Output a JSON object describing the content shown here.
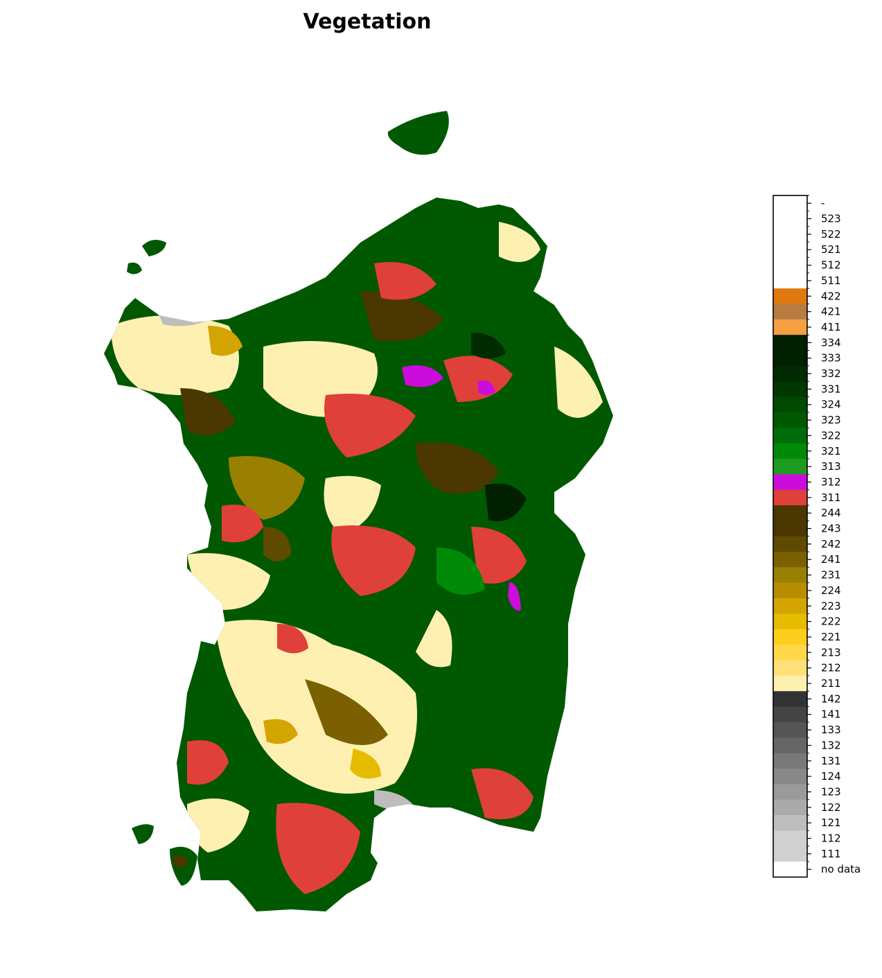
{
  "title": "Vegetation",
  "legend": {
    "classes": [
      {
        "label": "-",
        "color": "#ffffff"
      },
      {
        "label": "523",
        "color": "#ffffff"
      },
      {
        "label": "522",
        "color": "#ffffff"
      },
      {
        "label": "521",
        "color": "#ffffff"
      },
      {
        "label": "512",
        "color": "#ffffff"
      },
      {
        "label": "511",
        "color": "#ffffff"
      },
      {
        "label": "422",
        "color": "#e07a10"
      },
      {
        "label": "421",
        "color": "#b87c42"
      },
      {
        "label": "411",
        "color": "#f5a042"
      },
      {
        "label": "334",
        "color": "#002000"
      },
      {
        "label": "333",
        "color": "#002000"
      },
      {
        "label": "332",
        "color": "#002a00"
      },
      {
        "label": "331",
        "color": "#003800"
      },
      {
        "label": "324",
        "color": "#004a00"
      },
      {
        "label": "323",
        "color": "#005800"
      },
      {
        "label": "322",
        "color": "#006e08"
      },
      {
        "label": "321",
        "color": "#008a08"
      },
      {
        "label": "313",
        "color": "#1e9a1e"
      },
      {
        "label": "312",
        "color": "#cc0cdc"
      },
      {
        "label": "311",
        "color": "#e0403a"
      },
      {
        "label": "244",
        "color": "#4a3800"
      },
      {
        "label": "243",
        "color": "#4a3800"
      },
      {
        "label": "242",
        "color": "#5e4a00"
      },
      {
        "label": "241",
        "color": "#7a6000"
      },
      {
        "label": "231",
        "color": "#9a8000"
      },
      {
        "label": "224",
        "color": "#b88e00"
      },
      {
        "label": "223",
        "color": "#d4a400"
      },
      {
        "label": "222",
        "color": "#e6bc00"
      },
      {
        "label": "221",
        "color": "#fece1c"
      },
      {
        "label": "213",
        "color": "#fed848"
      },
      {
        "label": "212",
        "color": "#fee07a"
      },
      {
        "label": "211",
        "color": "#fef0b0"
      },
      {
        "label": "142",
        "color": "#333333"
      },
      {
        "label": "141",
        "color": "#444444"
      },
      {
        "label": "133",
        "color": "#555555"
      },
      {
        "label": "132",
        "color": "#666666"
      },
      {
        "label": "131",
        "color": "#787878"
      },
      {
        "label": "124",
        "color": "#888888"
      },
      {
        "label": "123",
        "color": "#9a9a9a"
      },
      {
        "label": "122",
        "color": "#aaaaaa"
      },
      {
        "label": "121",
        "color": "#bdbdbd"
      },
      {
        "label": "112",
        "color": "#d0d0d0"
      },
      {
        "label": "111",
        "color": "#d0d0d0"
      },
      {
        "label": "no data",
        "color": "#ffffff"
      }
    ]
  }
}
